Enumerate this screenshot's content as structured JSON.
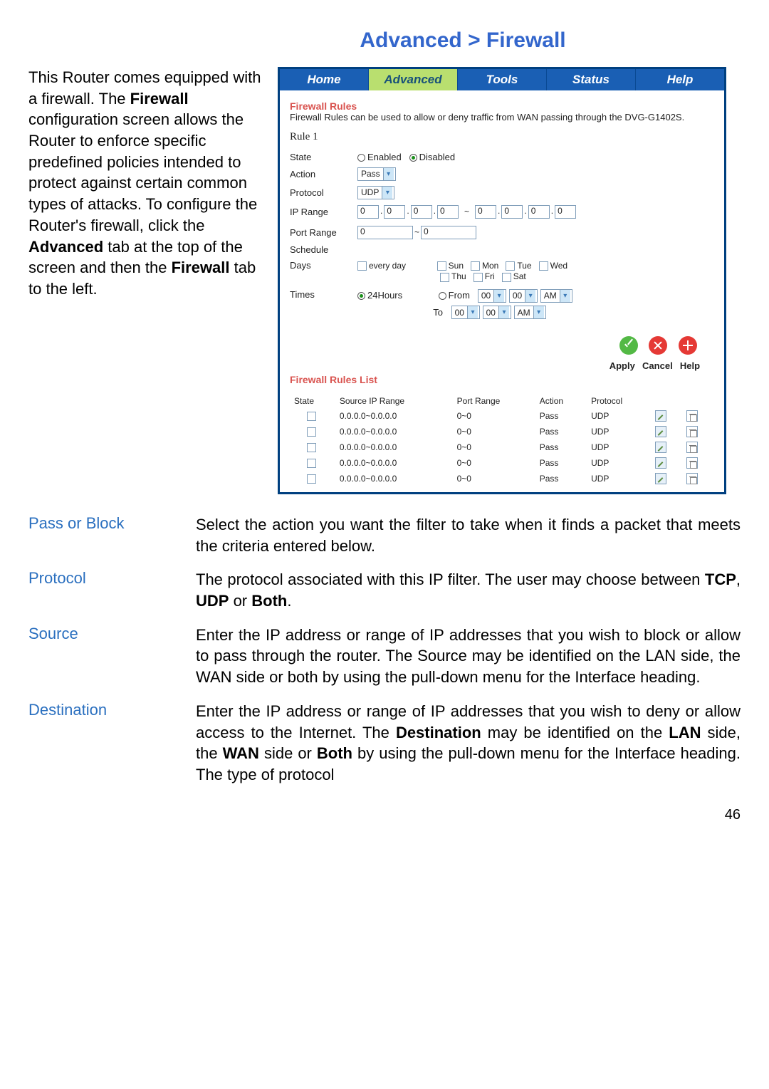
{
  "page_title": "Advanced > Firewall",
  "intro_html": "This Router comes equipped with a firewall. The <b>Firewall</b> configuration screen allows the Router to enforce specific predefined policies intended to protect against certain common types of attacks. To configure the Router's firewall, click the <b>Advanced</b> tab at the top of the screen and then the <b>Firewall</b> tab to the left.",
  "router": {
    "tabs": [
      "Home",
      "Advanced",
      "Tools",
      "Status",
      "Help"
    ],
    "active_tab": 1,
    "section_title": "Firewall Rules",
    "desc": "Firewall Rules can be used to allow or deny traffic from WAN passing through the DVG-G1402S.",
    "rule_header": "Rule  1",
    "form": {
      "state_label": "State",
      "state_options": [
        "Enabled",
        "Disabled"
      ],
      "state_selected": 1,
      "action_label": "Action",
      "action_value": "Pass",
      "protocol_label": "Protocol",
      "protocol_value": "UDP",
      "iprange_label": "IP Range",
      "ip_start": [
        "0",
        "0",
        "0",
        "0"
      ],
      "ip_end": [
        "0",
        "0",
        "0",
        "0"
      ],
      "portrange_label": "Port Range",
      "port_from": "0",
      "port_to": "0",
      "schedule_label": "Schedule",
      "days_label": "Days",
      "days_every": "every day",
      "days_list": [
        "Sun",
        "Mon",
        "Tue",
        "Wed",
        "Thu",
        "Fri",
        "Sat"
      ],
      "times_label": "Times",
      "times_24": "24Hours",
      "times_from_label": "From",
      "times_to_label": "To",
      "time_hh": "00",
      "time_mm": "00",
      "time_ampm": "AM"
    },
    "action_buttons": {
      "apply": "Apply",
      "cancel": "Cancel",
      "help": "Help"
    },
    "rules_list_title": "Firewall Rules List",
    "rules_table": {
      "columns": [
        "State",
        "Source IP Range",
        "Port Range",
        "Action",
        "Protocol"
      ],
      "rows": [
        [
          "",
          "0.0.0.0~0.0.0.0",
          "0~0",
          "Pass",
          "UDP"
        ],
        [
          "",
          "0.0.0.0~0.0.0.0",
          "0~0",
          "Pass",
          "UDP"
        ],
        [
          "",
          "0.0.0.0~0.0.0.0",
          "0~0",
          "Pass",
          "UDP"
        ],
        [
          "",
          "0.0.0.0~0.0.0.0",
          "0~0",
          "Pass",
          "UDP"
        ],
        [
          "",
          "0.0.0.0~0.0.0.0",
          "0~0",
          "Pass",
          "UDP"
        ]
      ]
    }
  },
  "definitions": [
    {
      "term": "Pass or Block",
      "text_html": "Select the action you want the filter to take when it finds a packet that meets the criteria entered below."
    },
    {
      "term": "Protocol",
      "text_html": "The protocol associated with this IP filter. The user may choose between <b>TCP</b>, <b>UDP</b> or <b>Both</b>."
    },
    {
      "term": "Source",
      "text_html": "Enter the IP address or range of IP addresses that you wish to block or allow to pass through the router. The Source may be identified on the LAN side, the WAN side or both by using the pull-down menu for the Interface heading."
    },
    {
      "term": "Destination",
      "text_html": "Enter the IP address or range of IP addresses that you wish to deny or allow access to the Internet. The <b>Destination</b> may be identified on the <b>LAN</b> side, the <b>WAN</b> side or <b>Both</b> by using the pull-down menu for the Interface heading. The type of protocol"
    }
  ],
  "page_number": "46"
}
